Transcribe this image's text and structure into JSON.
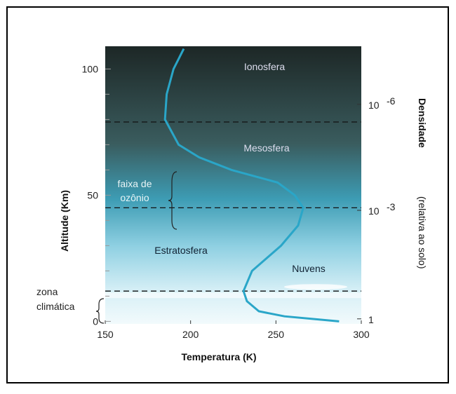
{
  "chart_data": {
    "type": "line",
    "xlabel": "Temperatura (K)",
    "ylabel": "Altitude  (Km)",
    "y2label": "Densidade",
    "y2sublabel": "(relativa ao solo)",
    "xlim": [
      150,
      300
    ],
    "xticks": [
      150,
      200,
      250,
      300
    ],
    "ylim": [
      -1,
      109
    ],
    "yticks": [
      0,
      50,
      100
    ],
    "y_minor_ticks": [
      10,
      20,
      30,
      40,
      60,
      70,
      80,
      90
    ],
    "density_ticks": [
      {
        "altitude": 86,
        "base": "10",
        "exponent": "-6"
      },
      {
        "altitude": 44,
        "base": "10",
        "exponent": "-3"
      },
      {
        "altitude": 1,
        "base": "1",
        "exponent": ""
      }
    ],
    "line_color": "#2aa6c8",
    "temperature": [
      287,
      255,
      240,
      233,
      231,
      236,
      253,
      263,
      266,
      261,
      251,
      224,
      205,
      193,
      185,
      186,
      190,
      196
    ],
    "altitude": [
      0,
      2,
      4,
      8,
      12,
      20,
      30,
      38,
      45,
      50,
      55,
      60,
      65,
      70,
      80,
      90,
      100,
      108
    ],
    "boundaries": [
      79,
      45,
      12
    ],
    "layers": [
      "Ionosfera",
      "Mesosfera",
      "Estratosfera",
      "Nuvens"
    ],
    "ozone_label": [
      "faixa de",
      "ozônio"
    ],
    "climate_label": [
      "zona",
      "climática"
    ]
  }
}
